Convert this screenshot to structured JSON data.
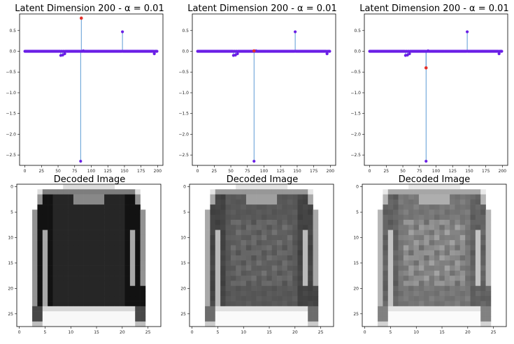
{
  "figure": {
    "panel_title": "Latent Dimension 200 - α = 0.01",
    "image_title": "Decoded Image"
  },
  "colors": {
    "stem": "#4a8fd0",
    "marker": "#6a1fe6",
    "highlight": "#e5302a"
  },
  "chart_data": [
    {
      "type": "stem",
      "title": "Latent Dimension 200 - α = 0.01",
      "xlim": [
        -8,
        208
      ],
      "ylim": [
        -2.75,
        0.9
      ],
      "xticks": [
        0,
        25,
        50,
        75,
        100,
        125,
        150,
        175,
        200
      ],
      "yticks": [
        0.5,
        0.0,
        -0.5,
        -1.0,
        -1.5,
        -2.0,
        -2.5
      ],
      "ytick_labels": [
        "0.5",
        "0.0",
        "−0.5",
        "−1.0",
        "−1.5",
        "−2.0",
        "−2.5"
      ],
      "n_points": 200,
      "baseline": 0.0,
      "nonzero": [
        [
          54,
          -0.1
        ],
        [
          57,
          -0.09
        ],
        [
          60,
          -0.06
        ],
        [
          84,
          -2.65
        ],
        [
          88,
          0.01
        ],
        [
          147,
          0.47
        ],
        [
          195,
          -0.06
        ]
      ],
      "highlight": {
        "x": 85,
        "y": 0.8
      }
    },
    {
      "type": "stem",
      "title": "Latent Dimension 200 - α = 0.01",
      "xlim": [
        -8,
        208
      ],
      "ylim": [
        -2.75,
        0.9
      ],
      "xticks": [
        0,
        25,
        50,
        75,
        100,
        125,
        150,
        175,
        200
      ],
      "yticks": [
        0.5,
        0.0,
        -0.5,
        -1.0,
        -1.5,
        -2.0,
        -2.5
      ],
      "ytick_labels": [
        "0.5",
        "0.0",
        "−0.5",
        "−1.0",
        "−1.5",
        "−2.0",
        "−2.5"
      ],
      "n_points": 200,
      "baseline": 0.0,
      "nonzero": [
        [
          54,
          -0.1
        ],
        [
          57,
          -0.09
        ],
        [
          60,
          -0.06
        ],
        [
          85,
          -2.65
        ],
        [
          88,
          0.01
        ],
        [
          147,
          0.47
        ],
        [
          195,
          -0.06
        ]
      ],
      "highlight": {
        "x": 85,
        "y": 0.01
      }
    },
    {
      "type": "stem",
      "title": "Latent Dimension 200 - α = 0.01",
      "xlim": [
        -8,
        208
      ],
      "ylim": [
        -2.75,
        0.9
      ],
      "xticks": [
        0,
        25,
        50,
        75,
        100,
        125,
        150,
        175,
        200
      ],
      "yticks": [
        0.5,
        0.0,
        -0.5,
        -1.0,
        -1.5,
        -2.0,
        -2.5
      ],
      "ytick_labels": [
        "0.5",
        "0.0",
        "−0.5",
        "−1.0",
        "−1.5",
        "−2.0",
        "−2.5"
      ],
      "n_points": 200,
      "baseline": 0.0,
      "nonzero": [
        [
          54,
          -0.1
        ],
        [
          57,
          -0.09
        ],
        [
          60,
          -0.06
        ],
        [
          85,
          -2.65
        ],
        [
          88,
          0.01
        ],
        [
          147,
          0.47
        ],
        [
          195,
          -0.06
        ]
      ],
      "highlight": {
        "x": 85,
        "y": -0.4
      }
    },
    {
      "type": "heatmap",
      "title": "Decoded Image",
      "grid": [
        28,
        28
      ],
      "xticks": [
        0,
        5,
        10,
        15,
        20,
        25
      ],
      "yticks": [
        0,
        5,
        10,
        15,
        20,
        25
      ],
      "body_darkness": 0.85,
      "texture": 0.0
    },
    {
      "type": "heatmap",
      "title": "Decoded Image",
      "grid": [
        28,
        28
      ],
      "xticks": [
        0,
        5,
        10,
        15,
        20,
        25
      ],
      "yticks": [
        0,
        5,
        10,
        15,
        20,
        25
      ],
      "body_darkness": 0.68,
      "texture": 0.08
    },
    {
      "type": "heatmap",
      "title": "Decoded Image",
      "grid": [
        28,
        28
      ],
      "xticks": [
        0,
        5,
        10,
        15,
        20,
        25
      ],
      "yticks": [
        0,
        5,
        10,
        15,
        20,
        25
      ],
      "body_darkness": 0.58,
      "texture": 0.14
    }
  ]
}
